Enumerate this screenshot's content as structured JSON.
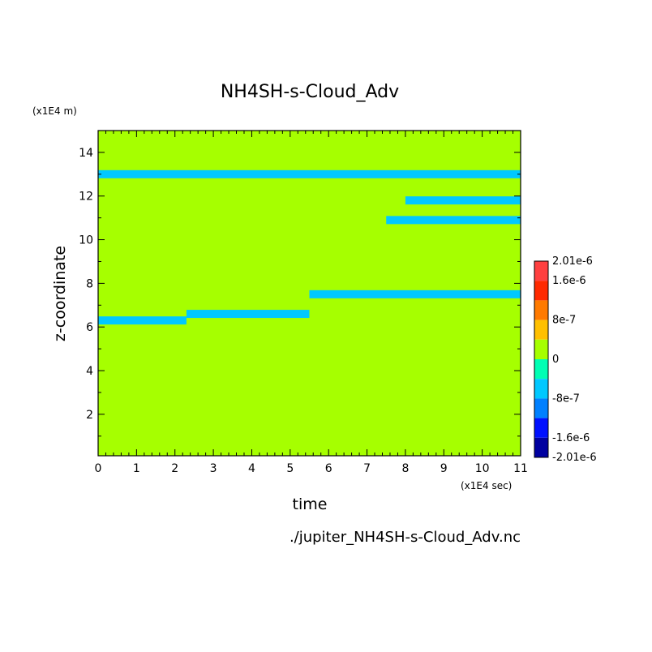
{
  "chart_data": {
    "type": "heatmap",
    "title": "NH4SH-s-Cloud_Adv",
    "xlabel": "time",
    "ylabel": "z-coordinate",
    "x_unit": "(x1E4 sec)",
    "y_unit": "(x1E4 m)",
    "xlim": [
      0,
      11
    ],
    "ylim": [
      0.1,
      15
    ],
    "x_ticks": [
      "0",
      "1",
      "2",
      "3",
      "4",
      "5",
      "6",
      "7",
      "8",
      "9",
      "10",
      "11"
    ],
    "y_ticks": [
      "2",
      "4",
      "6",
      "8",
      "10",
      "12",
      "14"
    ],
    "background_value": 0,
    "colorbar": {
      "labels": [
        "2.01e-6",
        "1.6e-6",
        "8e-7",
        "0",
        "-8e-7",
        "-1.6e-6",
        "-2.01e-6"
      ],
      "levels": [
        2.01e-06,
        1.6e-06,
        1.2e-06,
        8e-07,
        4e-07,
        0,
        -4e-07,
        -8e-07,
        -1.2e-06,
        -1.6e-06,
        -2.01e-06
      ],
      "colors": [
        "#ff4040",
        "#ff2a00",
        "#ff7a00",
        "#ffc000",
        "#a6ff00",
        "#00ffb4",
        "#00c8ff",
        "#0080ff",
        "#0010ff",
        "#0000a0"
      ],
      "zero_color": "#a6ff00"
    },
    "features": [
      {
        "x": [
          0.0,
          2.3
        ],
        "y": 6.3,
        "value": -4e-07
      },
      {
        "x": [
          2.3,
          5.5
        ],
        "y": 6.6,
        "value": -4e-07
      },
      {
        "x": [
          5.5,
          11.0
        ],
        "y": 7.5,
        "value": -4e-07
      },
      {
        "x": [
          7.5,
          11.0
        ],
        "y": 10.9,
        "value": -4e-07
      },
      {
        "x": [
          8.0,
          11.0
        ],
        "y": 11.8,
        "value": -4e-07
      },
      {
        "x": [
          0.0,
          11.0
        ],
        "y": 13.0,
        "value": -4e-07
      }
    ],
    "source_file": "./jupiter_NH4SH-s-Cloud_Adv.nc"
  }
}
